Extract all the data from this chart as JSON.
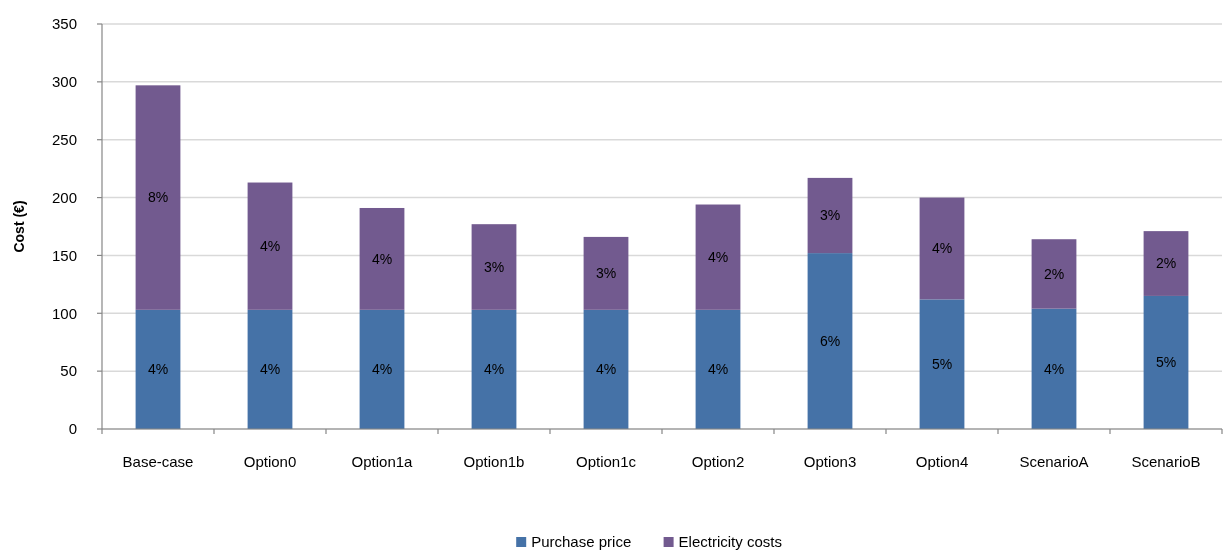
{
  "chart_data": {
    "type": "bar",
    "ylabel": "Cost (€)",
    "categories": [
      "Base-case",
      "Option0",
      "Option1a",
      "Option1b",
      "Option1c",
      "Option2",
      "Option3",
      "Option4",
      "ScenarioA",
      "ScenarioB"
    ],
    "series": [
      {
        "name": "Purchase price",
        "color": "#4572a7",
        "values": [
          103,
          103,
          103,
          103,
          103,
          103,
          152,
          112,
          104,
          115
        ]
      },
      {
        "name": "Electricity costs",
        "color": "#725a8f",
        "values": [
          194,
          110,
          88,
          74,
          63,
          91,
          65,
          88,
          60,
          56
        ]
      }
    ],
    "annotations": [
      "8%",
      "4%",
      "4%",
      "4%",
      "4%",
      "4%",
      "3%",
      "4%",
      "3%",
      "4%",
      "4%",
      "4%",
      "3%",
      "6%",
      "4%",
      "5%",
      "2%",
      "4%",
      "2%",
      "5%"
    ],
    "stacked": true,
    "ylim": [
      0,
      350
    ],
    "yticks": [
      0,
      50,
      100,
      150,
      200,
      250,
      300,
      350
    ],
    "grid": "y",
    "legend": "bottom"
  }
}
